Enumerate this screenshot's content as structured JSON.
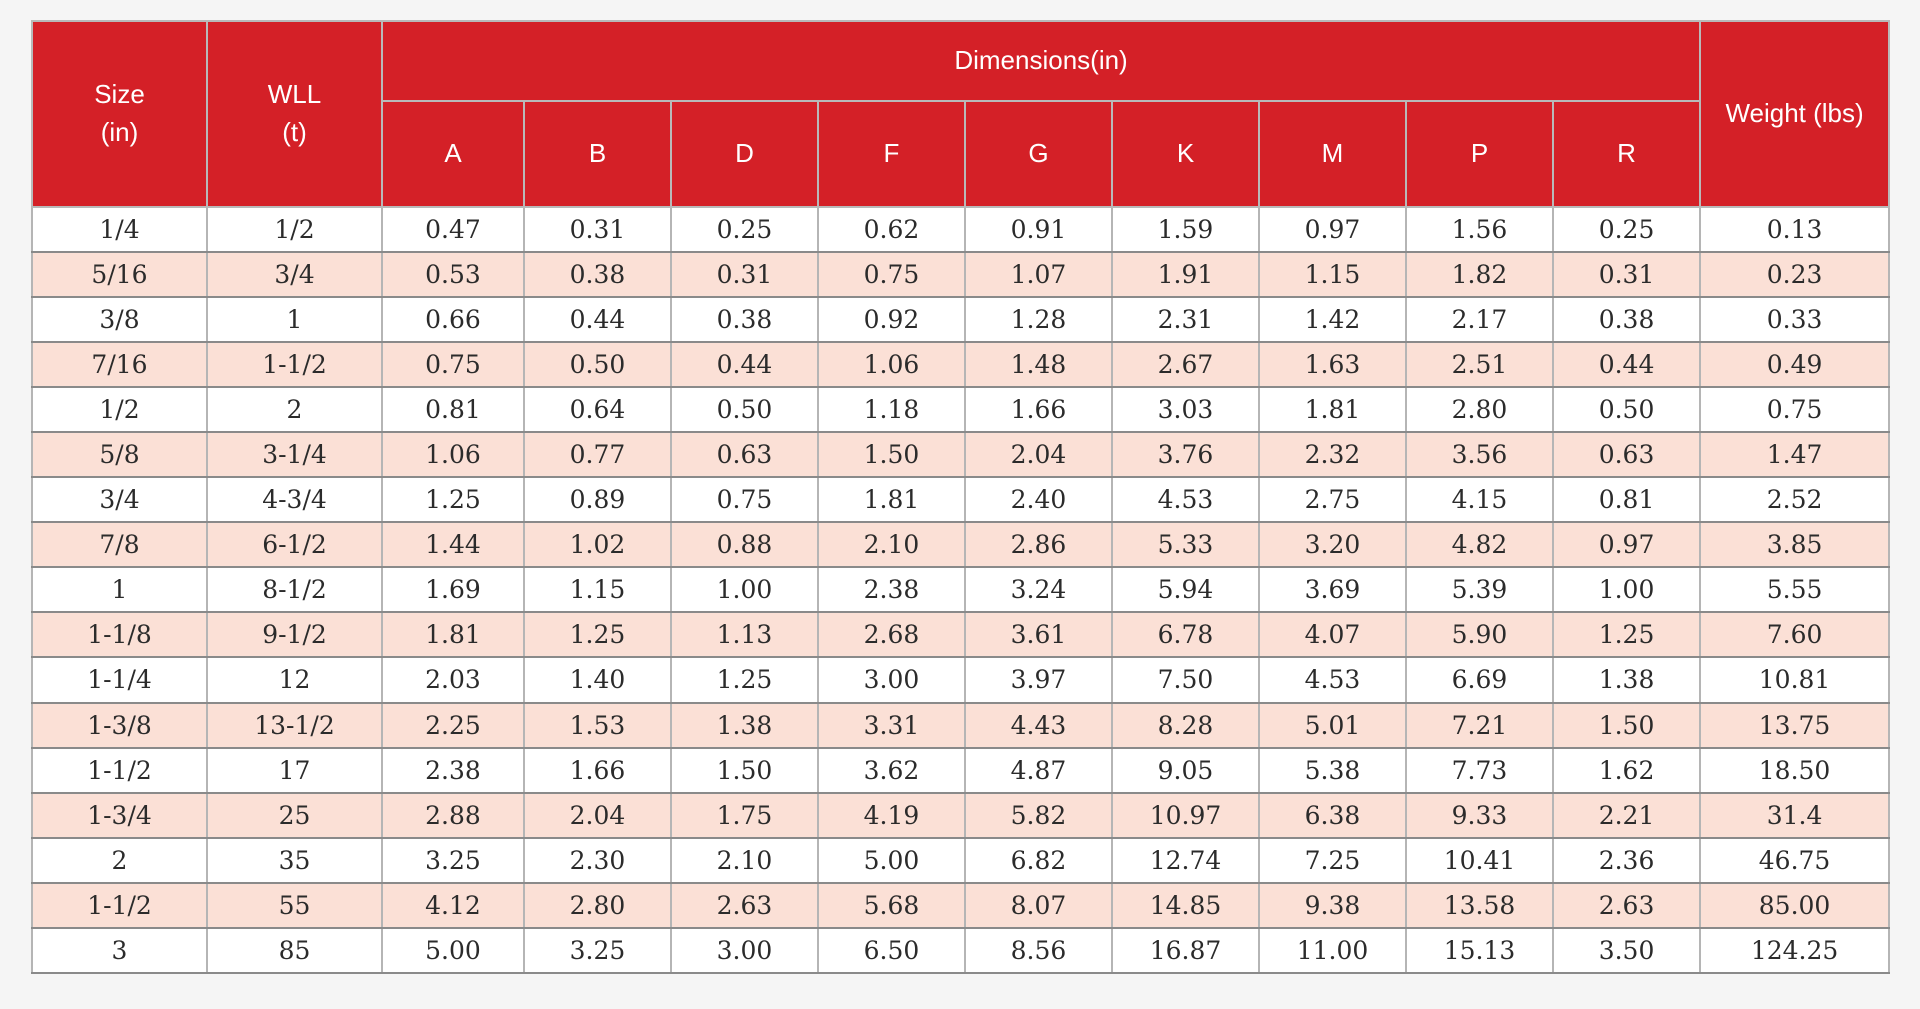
{
  "header": {
    "size_line1": "Size",
    "size_line2": "(in)",
    "wll_line1": "WLL",
    "wll_line2": "(t)",
    "dimensions": "Dimensions(in)",
    "weight": "Weight (lbs)",
    "dim_columns": [
      "A",
      "B",
      "D",
      "F",
      "G",
      "K",
      "M",
      "P",
      "R"
    ]
  },
  "rows": [
    [
      "1/4",
      "1/2",
      "0.47",
      "0.31",
      "0.25",
      "0.62",
      "0.91",
      "1.59",
      "0.97",
      "1.56",
      "0.25",
      "0.13"
    ],
    [
      "5/16",
      "3/4",
      "0.53",
      "0.38",
      "0.31",
      "0.75",
      "1.07",
      "1.91",
      "1.15",
      "1.82",
      "0.31",
      "0.23"
    ],
    [
      "3/8",
      "1",
      "0.66",
      "0.44",
      "0.38",
      "0.92",
      "1.28",
      "2.31",
      "1.42",
      "2.17",
      "0.38",
      "0.33"
    ],
    [
      "7/16",
      "1-1/2",
      "0.75",
      "0.50",
      "0.44",
      "1.06",
      "1.48",
      "2.67",
      "1.63",
      "2.51",
      "0.44",
      "0.49"
    ],
    [
      "1/2",
      "2",
      "0.81",
      "0.64",
      "0.50",
      "1.18",
      "1.66",
      "3.03",
      "1.81",
      "2.80",
      "0.50",
      "0.75"
    ],
    [
      "5/8",
      "3-1/4",
      "1.06",
      "0.77",
      "0.63",
      "1.50",
      "2.04",
      "3.76",
      "2.32",
      "3.56",
      "0.63",
      "1.47"
    ],
    [
      "3/4",
      "4-3/4",
      "1.25",
      "0.89",
      "0.75",
      "1.81",
      "2.40",
      "4.53",
      "2.75",
      "4.15",
      "0.81",
      "2.52"
    ],
    [
      "7/8",
      "6-1/2",
      "1.44",
      "1.02",
      "0.88",
      "2.10",
      "2.86",
      "5.33",
      "3.20",
      "4.82",
      "0.97",
      "3.85"
    ],
    [
      "1",
      "8-1/2",
      "1.69",
      "1.15",
      "1.00",
      "2.38",
      "3.24",
      "5.94",
      "3.69",
      "5.39",
      "1.00",
      "5.55"
    ],
    [
      "1-1/8",
      "9-1/2",
      "1.81",
      "1.25",
      "1.13",
      "2.68",
      "3.61",
      "6.78",
      "4.07",
      "5.90",
      "1.25",
      "7.60"
    ],
    [
      "1-1/4",
      "12",
      "2.03",
      "1.40",
      "1.25",
      "3.00",
      "3.97",
      "7.50",
      "4.53",
      "6.69",
      "1.38",
      "10.81"
    ],
    [
      "1-3/8",
      "13-1/2",
      "2.25",
      "1.53",
      "1.38",
      "3.31",
      "4.43",
      "8.28",
      "5.01",
      "7.21",
      "1.50",
      "13.75"
    ],
    [
      "1-1/2",
      "17",
      "2.38",
      "1.66",
      "1.50",
      "3.62",
      "4.87",
      "9.05",
      "5.38",
      "7.73",
      "1.62",
      "18.50"
    ],
    [
      "1-3/4",
      "25",
      "2.88",
      "2.04",
      "1.75",
      "4.19",
      "5.82",
      "10.97",
      "6.38",
      "9.33",
      "2.21",
      "31.4"
    ],
    [
      "2",
      "35",
      "3.25",
      "2.30",
      "2.10",
      "5.00",
      "6.82",
      "12.74",
      "7.25",
      "10.41",
      "2.36",
      "46.75"
    ],
    [
      "1-1/2",
      "55",
      "4.12",
      "2.80",
      "2.63",
      "5.68",
      "8.07",
      "14.85",
      "9.38",
      "13.58",
      "2.63",
      "85.00"
    ],
    [
      "3",
      "85",
      "5.00",
      "3.25",
      "3.00",
      "6.50",
      "8.56",
      "16.87",
      "11.00",
      "15.13",
      "3.50",
      "124.25"
    ]
  ],
  "colors": {
    "header_bg": "#d42027",
    "header_text": "#ffffff",
    "stripe_row": "#fbe0d6",
    "plain_row": "#ffffff",
    "page_bg": "#f5f5f5"
  }
}
